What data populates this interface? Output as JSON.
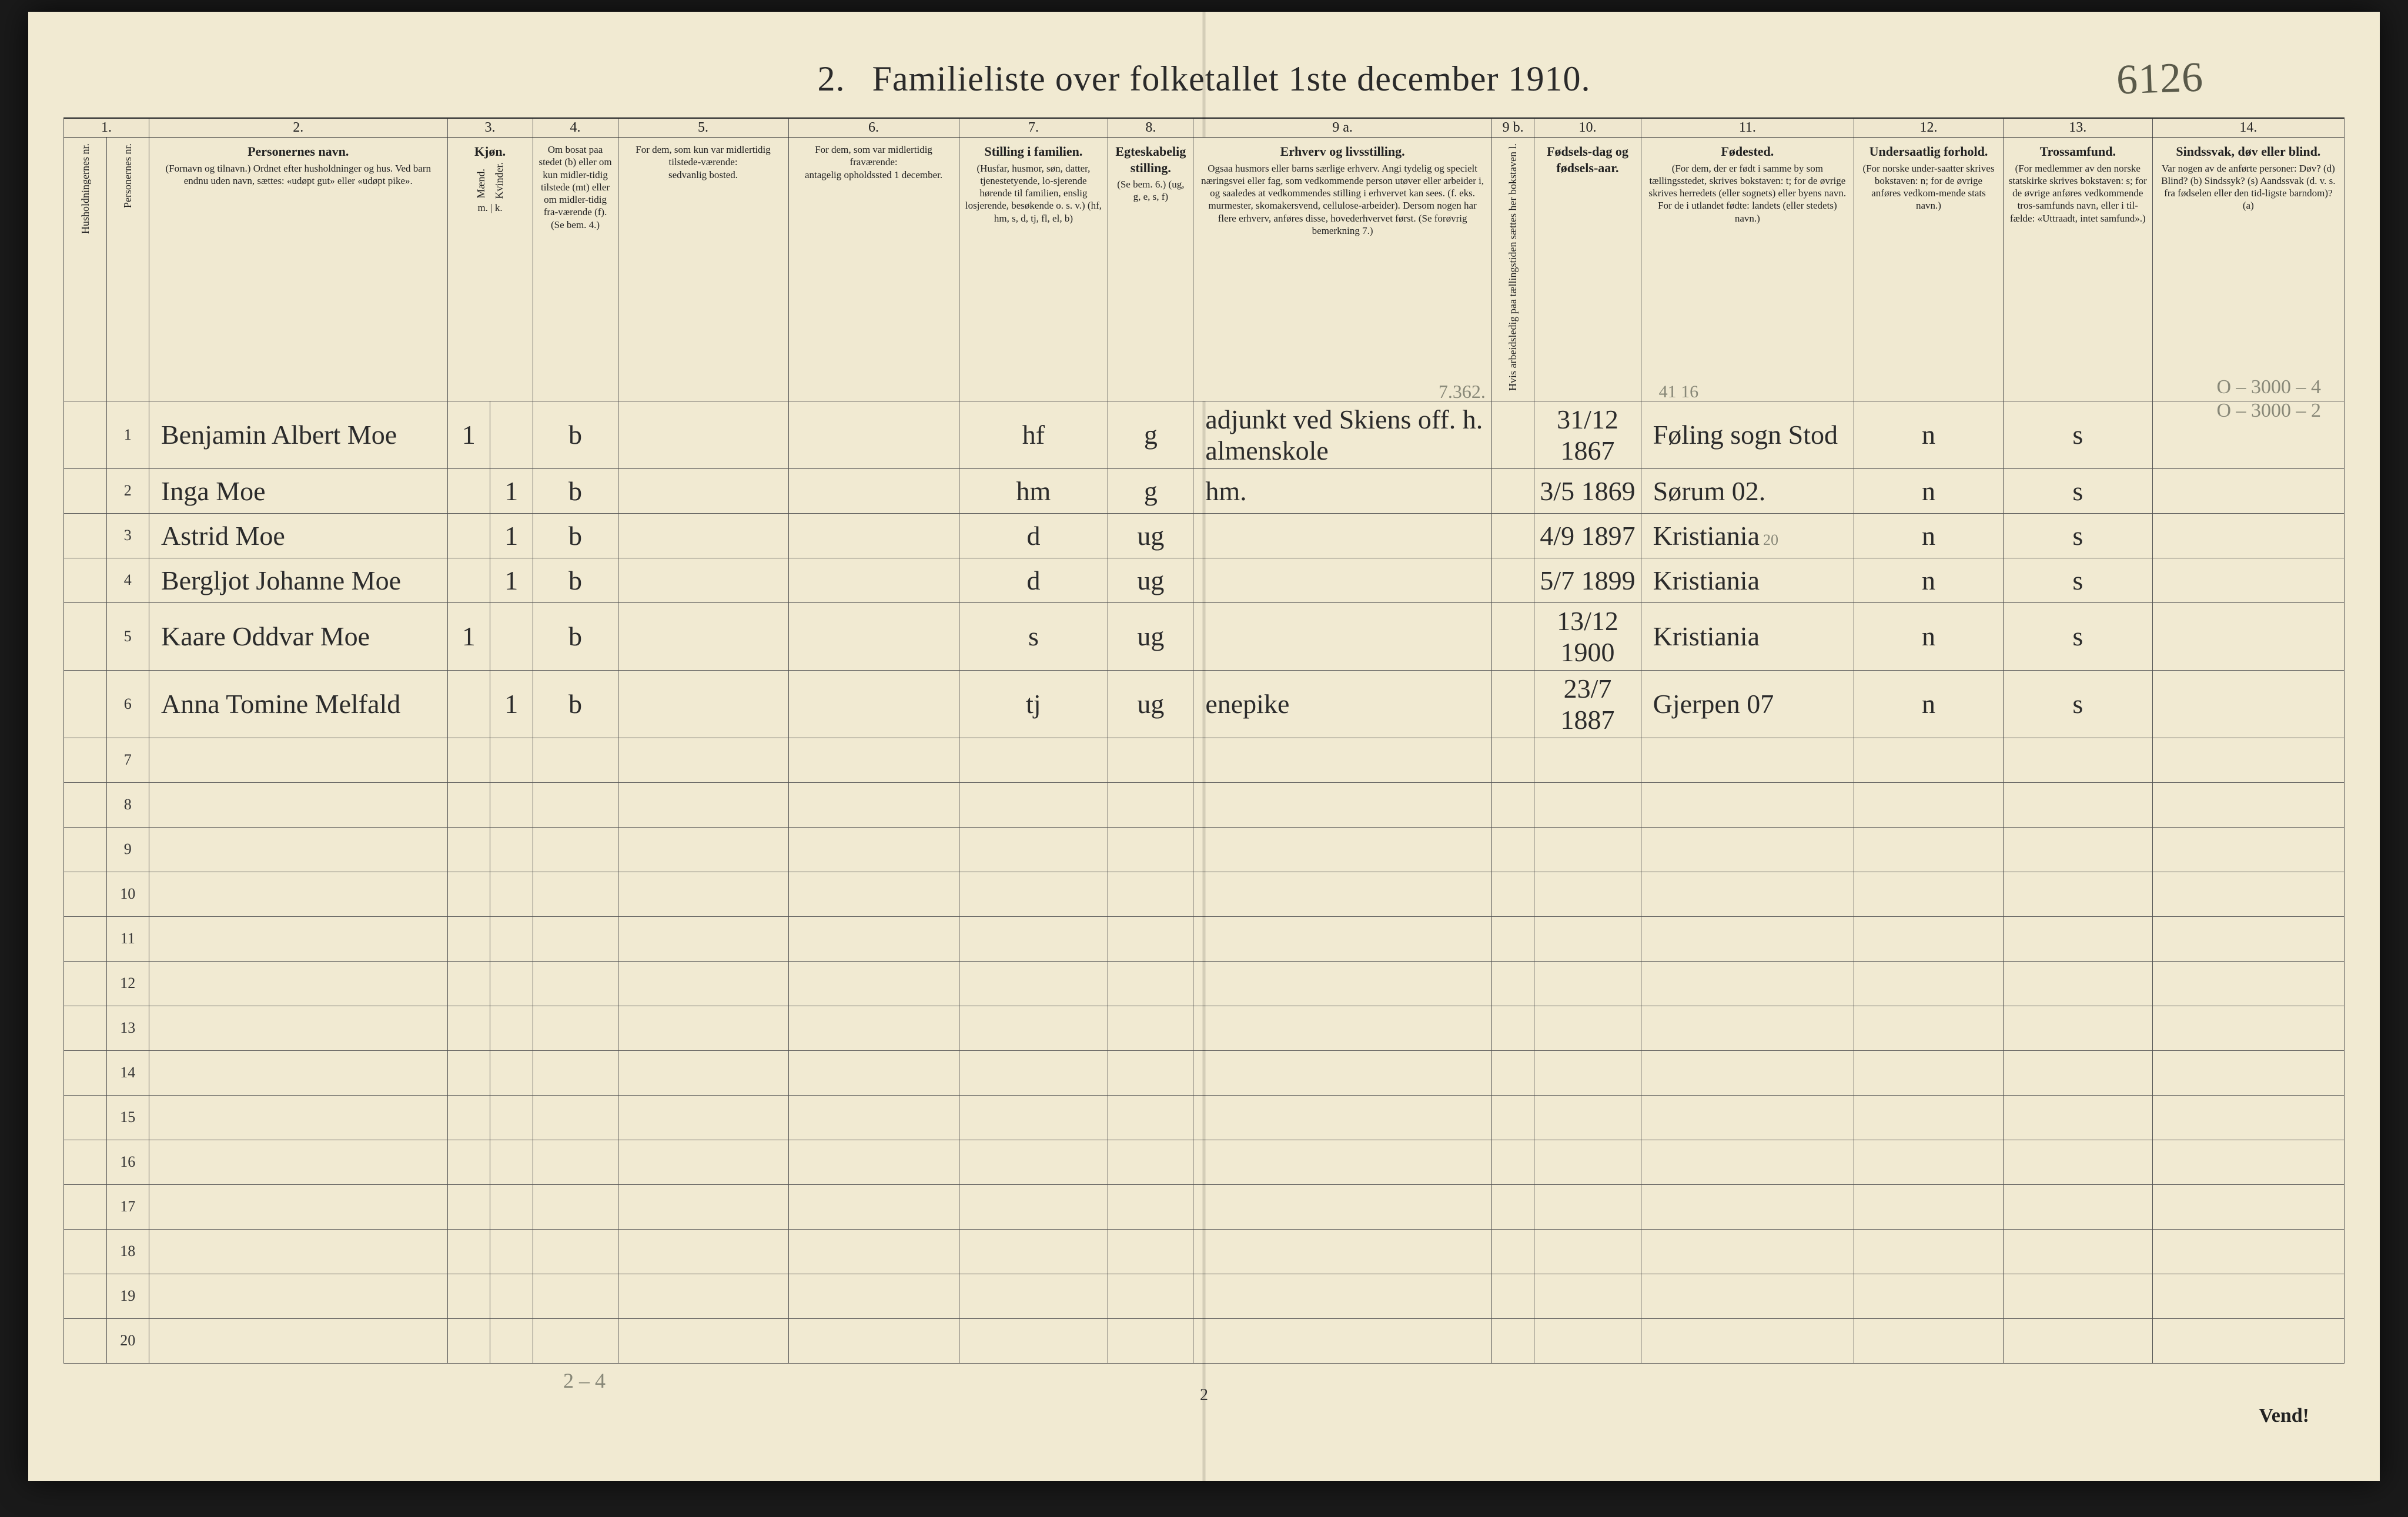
{
  "title": {
    "number": "2.",
    "text": "Familieliste over folketallet 1ste december 1910.",
    "handwritten_marginal": "6126"
  },
  "column_numbers": [
    "1.",
    "2.",
    "3.",
    "4.",
    "5.",
    "6.",
    "7.",
    "8.",
    "9 a.",
    "9 b.",
    "10.",
    "11.",
    "12.",
    "13.",
    "14."
  ],
  "col_widths_pct": [
    2,
    2,
    14,
    2,
    2,
    4,
    8,
    8,
    7,
    4,
    14,
    2,
    5,
    10,
    7,
    7,
    9
  ],
  "headers": {
    "c1": "Husholdningernes nr.",
    "c1b": "Personernes nr.",
    "c2_main": "Personernes navn.",
    "c2_sub": "(Fornavn og tilnavn.)\nOrdnet efter husholdninger og hus.\nVed barn endnu uden navn, sættes: «udøpt gut» eller «udøpt pike».",
    "c3_main": "Kjøn.",
    "c3_m": "Mænd.",
    "c3_k": "Kvinder.",
    "c3_mk": "m. | k.",
    "c4_main": "Om bosat paa stedet (b) eller om kun midler-tidig tilstede (mt) eller om midler-tidig fra-værende (f).",
    "c4_sub": "(Se bem. 4.)",
    "c5_main": "For dem, som kun var midlertidig tilstede-værende:",
    "c5_sub": "sedvanlig bosted.",
    "c6_main": "For dem, som var midlertidig fraværende:",
    "c6_sub": "antagelig opholdssted 1 december.",
    "c7_main": "Stilling i familien.",
    "c7_sub": "(Husfar, husmor, søn, datter, tjenestetyende, lo-sjerende hørende til familien, enslig losjerende, besøkende o. s. v.)\n(hf, hm, s, d, tj, fl, el, b)",
    "c8_main": "Egteskabelig stilling.",
    "c8_sub": "(Se bem. 6.)\n(ug, g, e, s, f)",
    "c9a_main": "Erhverv og livsstilling.",
    "c9a_sub": "Ogsaa husmors eller barns særlige erhverv.\nAngi tydelig og specielt næringsvei eller fag, som vedkommende person utøver eller arbeider i, og saaledes at vedkommendes stilling i erhvervet kan sees. (f. eks. murmester, skomakersvend, cellulose-arbeider). Dersom nogen har flere erhverv, anføres disse, hovederhvervet først.\n(Se forøvrig bemerkning 7.)",
    "c9b": "Hvis arbeidsledig paa tællingstiden sættes her bokstaven l.",
    "c10_main": "Fødsels-dag og fødsels-aar.",
    "c11_main": "Fødested.",
    "c11_sub": "(For dem, der er født i samme by som tællingsstedet, skrives bokstaven: t; for de øvrige skrives herredets (eller sognets) eller byens navn. For de i utlandet fødte: landets (eller stedets) navn.)",
    "c12_main": "Undersaatlig forhold.",
    "c12_sub": "(For norske under-saatter skrives bokstaven: n; for de øvrige anføres vedkom-mende stats navn.)",
    "c13_main": "Trossamfund.",
    "c13_sub": "(For medlemmer av den norske statskirke skrives bokstaven: s; for de øvrige anføres vedkommende tros-samfunds navn, eller i til-fælde: «Uttraadt, intet samfund».)",
    "c14_main": "Sindssvak, døv eller blind.",
    "c14_sub": "Var nogen av de anførte personer:\nDøv? (d)\nBlind? (b)\nSindssyk? (s)\nAandssvak (d. v. s. fra fødselen eller den tid-ligste barndom)? (a)"
  },
  "pencil_headnote": "7.362.",
  "pencil_col11_top": "41     16",
  "pencil_col11_r3": "20",
  "rows": [
    {
      "n": "1",
      "name": "Benjamin Albert Moe",
      "m": "1",
      "k": "",
      "bosat": "b",
      "c5": "",
      "c6": "",
      "fam": "hf",
      "egte": "g",
      "erhverv": "adjunkt ved Skiens off. h. almenskole",
      "c9b": "",
      "fdato": "31/12 1867",
      "fsted": "Føling sogn Stod",
      "us": "n",
      "tro": "s",
      "c14": ""
    },
    {
      "n": "2",
      "name": "Inga Moe",
      "m": "",
      "k": "1",
      "bosat": "b",
      "c5": "",
      "c6": "",
      "fam": "hm",
      "egte": "g",
      "erhverv": "hm.",
      "c9b": "",
      "fdato": "3/5 1869",
      "fsted": "Sørum  02.",
      "us": "n",
      "tro": "s",
      "c14": ""
    },
    {
      "n": "3",
      "name": "Astrid Moe",
      "m": "",
      "k": "1",
      "bosat": "b",
      "c5": "",
      "c6": "",
      "fam": "d",
      "egte": "ug",
      "erhverv": "",
      "c9b": "",
      "fdato": "4/9 1897",
      "fsted": "Kristiania",
      "us": "n",
      "tro": "s",
      "c14": ""
    },
    {
      "n": "4",
      "name": "Bergljot Johanne Moe",
      "m": "",
      "k": "1",
      "bosat": "b",
      "c5": "",
      "c6": "",
      "fam": "d",
      "egte": "ug",
      "erhverv": "",
      "c9b": "",
      "fdato": "5/7 1899",
      "fsted": "Kristiania",
      "us": "n",
      "tro": "s",
      "c14": ""
    },
    {
      "n": "5",
      "name": "Kaare Oddvar Moe",
      "m": "1",
      "k": "",
      "bosat": "b",
      "c5": "",
      "c6": "",
      "fam": "s",
      "egte": "ug",
      "erhverv": "",
      "c9b": "",
      "fdato": "13/12 1900",
      "fsted": "Kristiania",
      "us": "n",
      "tro": "s",
      "c14": ""
    },
    {
      "n": "6",
      "name": "Anna Tomine Melfald",
      "m": "",
      "k": "1",
      "bosat": "b",
      "c5": "",
      "c6": "",
      "fam": "tj",
      "egte": "ug",
      "erhverv": "enepike",
      "c9b": "",
      "fdato": "23/7 1887",
      "fsted": "Gjerpen  07",
      "us": "n",
      "tro": "s",
      "c14": ""
    }
  ],
  "blank_rows_from": 7,
  "blank_rows_to": 20,
  "pencil_bottom": "2 – 4",
  "pencil_right_margin": [
    "O – 3000 – 4",
    "O – 3000 – 2"
  ],
  "footer": {
    "page_number": "2",
    "vend": "Vend!"
  }
}
